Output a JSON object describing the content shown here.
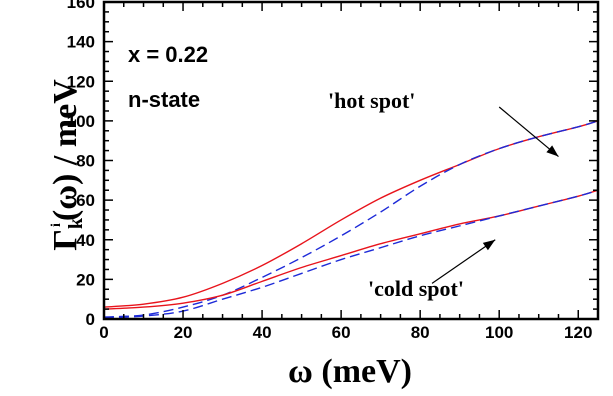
{
  "chart_data": {
    "type": "line",
    "xlabel": "ω (meV)",
    "ylabel_parts": {
      "main": "Γ",
      "sub": "k",
      "sup": "i",
      "tail": "(ω) / meV"
    },
    "xlim": [
      0,
      125
    ],
    "ylim": [
      0,
      160
    ],
    "xticks": [
      0,
      20,
      40,
      60,
      80,
      100,
      120
    ],
    "yticks": [
      0,
      20,
      40,
      60,
      80,
      100,
      120,
      140,
      160
    ],
    "grid": false,
    "annotations": {
      "x_value": "x = 0.22",
      "state": "n-state",
      "hot": "'hot spot'",
      "cold": "'cold spot'"
    },
    "series": [
      {
        "color": "#e8141c",
        "dash": "solid",
        "x": [
          0,
          10,
          20,
          30,
          40,
          50,
          60,
          70,
          80,
          90,
          100,
          110,
          120,
          125
        ],
        "y": [
          6,
          7.5,
          11,
          18,
          27,
          38,
          50,
          61,
          70,
          78,
          86,
          92,
          97,
          100
        ]
      },
      {
        "color": "#1d2ad8",
        "dash": "dashed",
        "x": [
          0,
          10,
          20,
          30,
          40,
          50,
          60,
          70,
          80,
          90,
          100,
          110,
          120,
          125
        ],
        "y": [
          1,
          2,
          6,
          12,
          21,
          31,
          42,
          54,
          67,
          78,
          86,
          92,
          97,
          100
        ]
      },
      {
        "color": "#e8141c",
        "dash": "solid",
        "x": [
          0,
          10,
          20,
          30,
          40,
          50,
          60,
          70,
          80,
          90,
          100,
          110,
          120,
          125
        ],
        "y": [
          5,
          6,
          8,
          12,
          19,
          26,
          32,
          38,
          43,
          48,
          52,
          57,
          62,
          65
        ]
      },
      {
        "color": "#1d2ad8",
        "dash": "dashed",
        "x": [
          0,
          10,
          20,
          30,
          40,
          50,
          60,
          70,
          80,
          90,
          100,
          110,
          120,
          125
        ],
        "y": [
          0.5,
          1.5,
          4,
          10,
          16,
          23,
          30,
          36,
          42,
          47,
          52,
          57,
          62,
          65
        ]
      }
    ],
    "arrows": [
      {
        "from": [
          100,
          107
        ],
        "to": [
          115,
          82
        ]
      },
      {
        "from": [
          83,
          18
        ],
        "to": [
          99,
          40
        ]
      }
    ]
  }
}
